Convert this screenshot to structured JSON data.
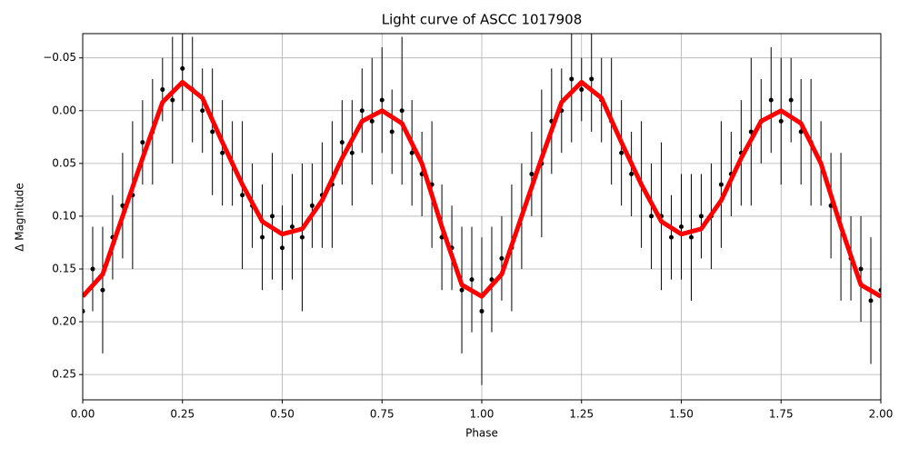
{
  "chart_data": {
    "type": "scatter",
    "title": "Light curve of ASCC 1017908",
    "x_label": "Phase",
    "y_label": "Δ Magnitude",
    "xlim": [
      0,
      2
    ],
    "ylim": [
      0.274,
      -0.073
    ],
    "grid": true,
    "xticks": [
      {
        "value": 0,
        "label": "0.00"
      },
      {
        "value": 0.25,
        "label": "0.25"
      },
      {
        "value": 0.5,
        "label": "0.50"
      },
      {
        "value": 0.75,
        "label": "0.75"
      },
      {
        "value": 1,
        "label": "1.00"
      },
      {
        "value": 1.25,
        "label": "1.25"
      },
      {
        "value": 1.5,
        "label": "1.50"
      },
      {
        "value": 1.75,
        "label": "1.75"
      },
      {
        "value": 2,
        "label": "2.00"
      }
    ],
    "yticks": [
      {
        "value": -0.05,
        "label": "−0.05"
      },
      {
        "value": 0,
        "label": "0.00"
      },
      {
        "value": 0.05,
        "label": "0.05"
      },
      {
        "value": 0.1,
        "label": "0.10"
      },
      {
        "value": 0.15,
        "label": "0.15"
      },
      {
        "value": 0.2,
        "label": "0.20"
      },
      {
        "value": 0.25,
        "label": "0.25"
      }
    ],
    "series": [
      {
        "type": "errorbar",
        "color": "#000000",
        "x": [
          0,
          0.025,
          0.05,
          0.075,
          0.1,
          0.125,
          0.15,
          0.175,
          0.2,
          0.225,
          0.25,
          0.275,
          0.3,
          0.325,
          0.35,
          0.375,
          0.4,
          0.425,
          0.45,
          0.475,
          0.5,
          0.525,
          0.55,
          0.575,
          0.6,
          0.625,
          0.65,
          0.675,
          0.7,
          0.725,
          0.75,
          0.775,
          0.8,
          0.825,
          0.85,
          0.875,
          0.9,
          0.925,
          0.95,
          0.975,
          1,
          1.025,
          1.05,
          1.075,
          1.1,
          1.125,
          1.15,
          1.175,
          1.2,
          1.225,
          1.25,
          1.275,
          1.3,
          1.325,
          1.35,
          1.375,
          1.4,
          1.425,
          1.45,
          1.475,
          1.5,
          1.525,
          1.55,
          1.575,
          1.6,
          1.625,
          1.65,
          1.675,
          1.7,
          1.725,
          1.75,
          1.775,
          1.8,
          1.825,
          1.85,
          1.875,
          1.9,
          1.925,
          1.95,
          1.975,
          2
        ],
        "values": [
          0.19,
          0.15,
          0.17,
          0.12,
          0.09,
          0.08,
          0.03,
          0.02,
          -0.02,
          -0.01,
          -0.04,
          -0.02,
          0,
          0.02,
          0.04,
          0.05,
          0.08,
          0.09,
          0.12,
          0.1,
          0.13,
          0.11,
          0.12,
          0.09,
          0.08,
          0.07,
          0.03,
          0.04,
          0,
          0.01,
          -0.01,
          0.02,
          0,
          0.04,
          0.06,
          0.07,
          0.12,
          0.13,
          0.17,
          0.16,
          0.19,
          0.16,
          0.14,
          0.13,
          0.1,
          0.06,
          0.05,
          0.01,
          0,
          -0.03,
          -0.02,
          -0.03,
          -0.01,
          0.01,
          0.04,
          0.06,
          0.07,
          0.1,
          0.1,
          0.12,
          0.11,
          0.12,
          0.1,
          0.1,
          0.07,
          0.06,
          0.04,
          0.02,
          0.01,
          -0.01,
          0.01,
          -0.01,
          0.02,
          0.03,
          0.05,
          0.09,
          0.11,
          0.14,
          0.15,
          0.18,
          0.17
        ],
        "errors": [
          0.05,
          0.04,
          0.06,
          0.04,
          0.05,
          0.07,
          0.04,
          0.05,
          0.03,
          0.06,
          0.04,
          0.05,
          0.04,
          0.06,
          0.05,
          0.04,
          0.07,
          0.04,
          0.05,
          0.06,
          0.04,
          0.05,
          0.07,
          0.04,
          0.05,
          0.06,
          0.04,
          0.05,
          0.04,
          0.06,
          0.05,
          0.04,
          0.07,
          0.05,
          0.04,
          0.06,
          0.05,
          0.04,
          0.06,
          0.05,
          0.07,
          0.05,
          0.04,
          0.06,
          0.05,
          0.04,
          0.07,
          0.05,
          0.04,
          0.06,
          0.03,
          0.05,
          0.04,
          0.06,
          0.05,
          0.04,
          0.06,
          0.05,
          0.07,
          0.04,
          0.05,
          0.06,
          0.04,
          0.05,
          0.06,
          0.04,
          0.05,
          0.07,
          0.04,
          0.05,
          0.06,
          0.04,
          0.05,
          0.06,
          0.04,
          0.05,
          0.07,
          0.04,
          0.05,
          0.06,
          0.05
        ]
      },
      {
        "type": "line",
        "color": "#ff0000",
        "x": [
          0,
          0.05,
          0.1,
          0.15,
          0.2,
          0.25,
          0.3,
          0.35,
          0.4,
          0.45,
          0.5,
          0.55,
          0.6,
          0.65,
          0.7,
          0.75,
          0.8,
          0.85,
          0.9,
          0.95,
          1,
          1.05,
          1.1,
          1.15,
          1.2,
          1.25,
          1.3,
          1.35,
          1.4,
          1.45,
          1.5,
          1.55,
          1.6,
          1.65,
          1.7,
          1.75,
          1.8,
          1.85,
          1.9,
          1.95,
          2
        ],
        "values": [
          0.176,
          0.155,
          0.1,
          0.045,
          -0.008,
          -0.027,
          -0.012,
          0.03,
          0.07,
          0.105,
          0.117,
          0.112,
          0.085,
          0.045,
          0.01,
          0,
          0.012,
          0.05,
          0.11,
          0.165,
          0.176,
          0.155,
          0.1,
          0.045,
          -0.008,
          -0.027,
          -0.012,
          0.03,
          0.07,
          0.105,
          0.117,
          0.112,
          0.085,
          0.045,
          0.01,
          0,
          0.012,
          0.05,
          0.11,
          0.165,
          0.176
        ]
      }
    ]
  }
}
